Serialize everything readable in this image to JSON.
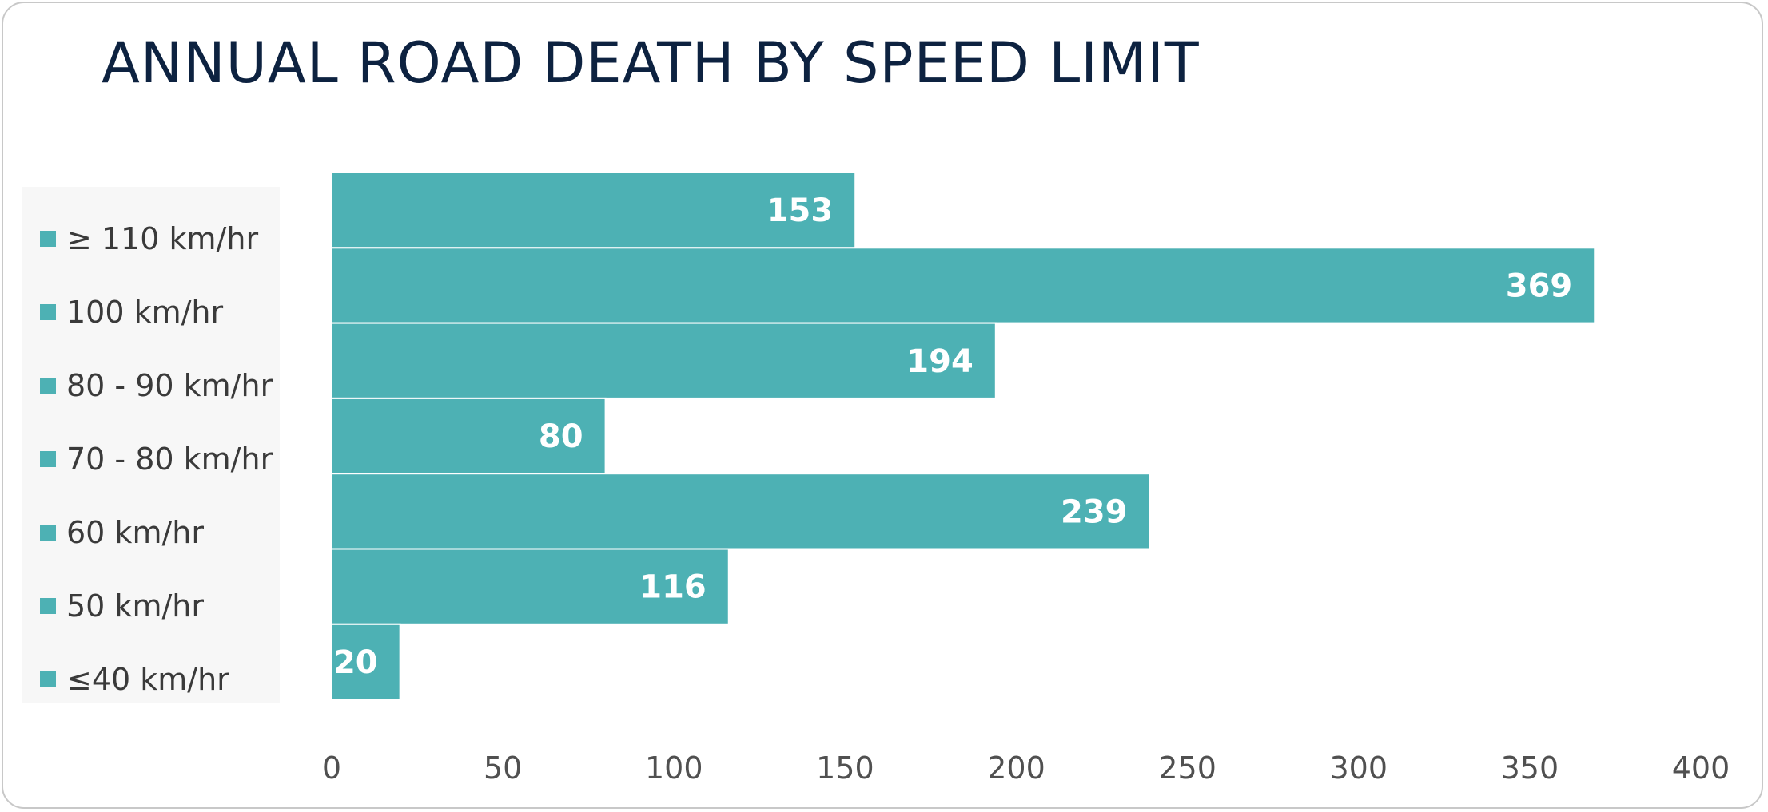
{
  "chart_data": {
    "type": "bar",
    "orientation": "horizontal",
    "title": "ANNUAL ROAD DEATH BY SPEED LIMIT",
    "xlabel": "",
    "ylabel": "",
    "categories": [
      "≥ 110 km/hr",
      "100 km/hr",
      "80 - 90 km/hr",
      "70 - 80 km/hr",
      "60 km/hr",
      "50 km/hr",
      "≤40 km/hr"
    ],
    "values": [
      153,
      369,
      194,
      80,
      239,
      116,
      20
    ],
    "xlim": [
      0,
      400
    ],
    "x_ticks": [
      0,
      50,
      100,
      150,
      200,
      250,
      300,
      350,
      400
    ],
    "grid": false,
    "data_labels": true,
    "legend_position": "left",
    "bar_color": "#4db1b4",
    "label_color": "#ffffff",
    "title_color": "#0d2240"
  }
}
